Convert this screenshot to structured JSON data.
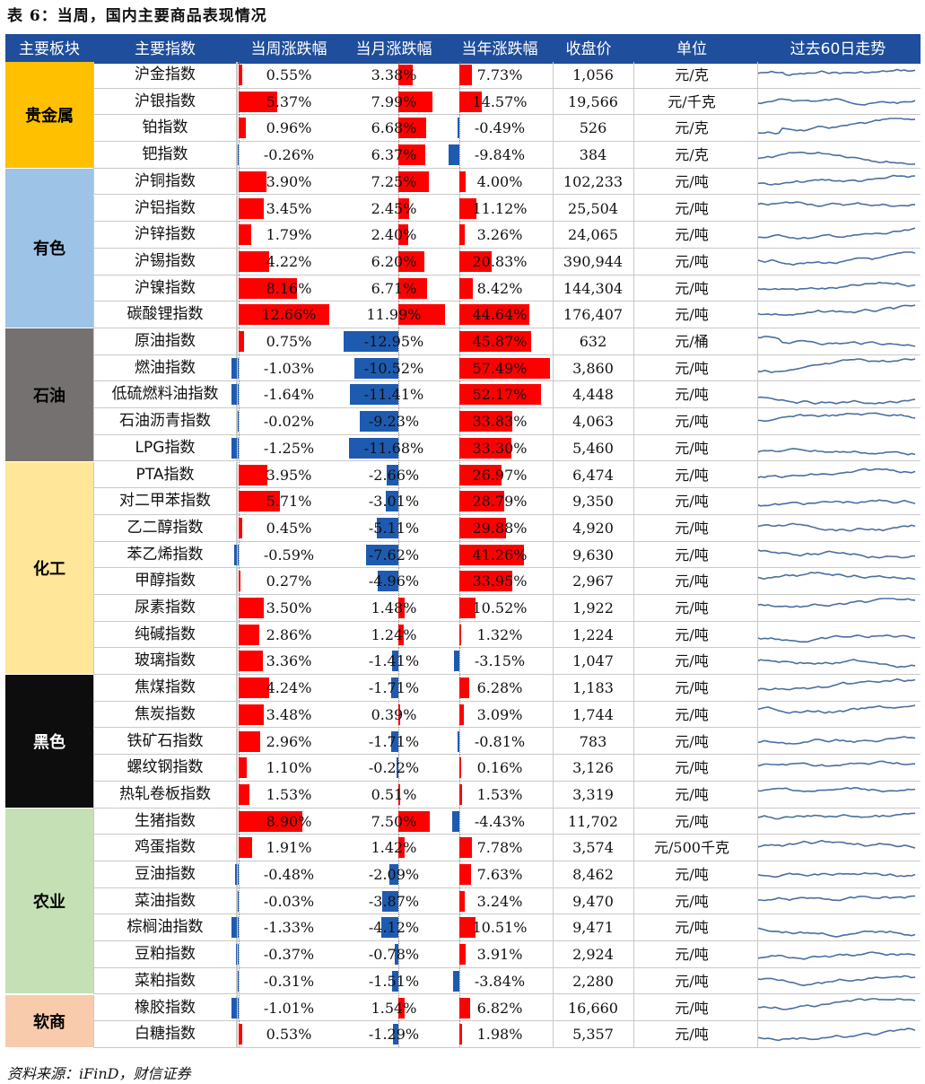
{
  "title": "表 6：当周，国内主要商品表现情况",
  "source": "资料来源：iFinD，财信证券",
  "headers": [
    "主要板块",
    "主要指数",
    "当周涨跌幅",
    "当月涨跌幅",
    "当年涨跌幅",
    "收盘价",
    "单位",
    "过去60日走势"
  ],
  "groups": [
    {
      "name": "贵金属",
      "color": "#ffc000",
      "text_color": "#000000",
      "rows": 4
    },
    {
      "name": "有色",
      "color": "#9dc3e6",
      "text_color": "#000000",
      "rows": 6
    },
    {
      "name": "石油",
      "color": "#767171",
      "text_color": "#000000",
      "rows": 5
    },
    {
      "name": "化工",
      "color": "#ffe699",
      "text_color": "#000000",
      "rows": 8
    },
    {
      "name": "黑色",
      "color": "#0d0d0d",
      "text_color": "#ffffff",
      "rows": 5
    },
    {
      "name": "农业",
      "color": "#c5e0b4",
      "text_color": "#000000",
      "rows": 7
    },
    {
      "name": "软商",
      "color": "#f8cbad",
      "text_color": "#000000",
      "rows": 2
    }
  ],
  "rows": [
    {
      "name": "沪金指数",
      "week": "0.55%",
      "month": "3.38%",
      "year": "7.73%",
      "close": "1,056",
      "unit": "元/克"
    },
    {
      "name": "沪银指数",
      "week": "5.37%",
      "month": "7.99%",
      "year": "14.57%",
      "close": "19,566",
      "unit": "元/千克"
    },
    {
      "name": "铂指数",
      "week": "0.96%",
      "month": "6.68%",
      "year": "-0.49%",
      "close": "526",
      "unit": "元/克"
    },
    {
      "name": "钯指数",
      "week": "-0.26%",
      "month": "6.37%",
      "year": "-9.84%",
      "close": "384",
      "unit": "元/克"
    },
    {
      "name": "沪铜指数",
      "week": "3.90%",
      "month": "7.25%",
      "year": "4.00%",
      "close": "102,233",
      "unit": "元/吨"
    },
    {
      "name": "沪铝指数",
      "week": "3.45%",
      "month": "2.45%",
      "year": "11.12%",
      "close": "25,504",
      "unit": "元/吨"
    },
    {
      "name": "沪锌指数",
      "week": "1.79%",
      "month": "2.40%",
      "year": "3.26%",
      "close": "24,065",
      "unit": "元/吨"
    },
    {
      "name": "沪锡指数",
      "week": "4.22%",
      "month": "6.20%",
      "year": "20.83%",
      "close": "390,944",
      "unit": "元/吨"
    },
    {
      "name": "沪镍指数",
      "week": "8.16%",
      "month": "6.71%",
      "year": "8.42%",
      "close": "144,304",
      "unit": "元/吨"
    },
    {
      "name": "碳酸锂指数",
      "week": "12.66%",
      "month": "11.99%",
      "year": "44.64%",
      "close": "176,407",
      "unit": "元/吨"
    },
    {
      "name": "原油指数",
      "week": "0.75%",
      "month": "-12.95%",
      "year": "45.87%",
      "close": "632",
      "unit": "元/桶"
    },
    {
      "name": "燃油指数",
      "week": "-1.03%",
      "month": "-10.52%",
      "year": "57.49%",
      "close": "3,860",
      "unit": "元/吨"
    },
    {
      "name": "低硫燃料油指数",
      "week": "-1.64%",
      "month": "-11.41%",
      "year": "52.17%",
      "close": "4,448",
      "unit": "元/吨"
    },
    {
      "name": "石油沥青指数",
      "week": "-0.02%",
      "month": "-9.23%",
      "year": "33.83%",
      "close": "4,063",
      "unit": "元/吨"
    },
    {
      "name": "LPG指数",
      "week": "-1.25%",
      "month": "-11.68%",
      "year": "33.30%",
      "close": "5,460",
      "unit": "元/吨"
    },
    {
      "name": "PTA指数",
      "week": "3.95%",
      "month": "-2.66%",
      "year": "26.97%",
      "close": "6,474",
      "unit": "元/吨"
    },
    {
      "name": "对二甲苯指数",
      "week": "5.71%",
      "month": "-3.01%",
      "year": "28.79%",
      "close": "9,350",
      "unit": "元/吨"
    },
    {
      "name": "乙二醇指数",
      "week": "0.45%",
      "month": "-5.11%",
      "year": "29.88%",
      "close": "4,920",
      "unit": "元/吨"
    },
    {
      "name": "苯乙烯指数",
      "week": "-0.59%",
      "month": "-7.62%",
      "year": "41.26%",
      "close": "9,630",
      "unit": "元/吨"
    },
    {
      "name": "甲醇指数",
      "week": "0.27%",
      "month": "-4.96%",
      "year": "33.95%",
      "close": "2,967",
      "unit": "元/吨"
    },
    {
      "name": "尿素指数",
      "week": "3.50%",
      "month": "1.48%",
      "year": "10.52%",
      "close": "1,922",
      "unit": "元/吨"
    },
    {
      "name": "纯碱指数",
      "week": "2.86%",
      "month": "1.24%",
      "year": "1.32%",
      "close": "1,224",
      "unit": "元/吨"
    },
    {
      "name": "玻璃指数",
      "week": "3.36%",
      "month": "-1.41%",
      "year": "-3.15%",
      "close": "1,047",
      "unit": "元/吨"
    },
    {
      "name": "焦煤指数",
      "week": "4.24%",
      "month": "-1.71%",
      "year": "6.28%",
      "close": "1,183",
      "unit": "元/吨"
    },
    {
      "name": "焦炭指数",
      "week": "3.48%",
      "month": "0.39%",
      "year": "3.09%",
      "close": "1,744",
      "unit": "元/吨"
    },
    {
      "name": "铁矿石指数",
      "week": "2.96%",
      "month": "-1.71%",
      "year": "-0.81%",
      "close": "783",
      "unit": "元/吨"
    },
    {
      "name": "螺纹钢指数",
      "week": "1.10%",
      "month": "-0.22%",
      "year": "0.16%",
      "close": "3,126",
      "unit": "元/吨"
    },
    {
      "name": "热轧卷板指数",
      "week": "1.53%",
      "month": "0.51%",
      "year": "1.53%",
      "close": "3,319",
      "unit": "元/吨"
    },
    {
      "name": "生猪指数",
      "week": "8.90%",
      "month": "7.50%",
      "year": "-4.43%",
      "close": "11,702",
      "unit": "元/吨"
    },
    {
      "name": "鸡蛋指数",
      "week": "1.91%",
      "month": "1.42%",
      "year": "7.78%",
      "close": "3,574",
      "unit": "元/500千克"
    },
    {
      "name": "豆油指数",
      "week": "-0.48%",
      "month": "-2.09%",
      "year": "7.63%",
      "close": "8,462",
      "unit": "元/吨"
    },
    {
      "name": "菜油指数",
      "week": "-0.03%",
      "month": "-3.87%",
      "year": "3.24%",
      "close": "9,470",
      "unit": "元/吨"
    },
    {
      "name": "棕榈油指数",
      "week": "-1.33%",
      "month": "-4.12%",
      "year": "10.51%",
      "close": "9,471",
      "unit": "元/吨"
    },
    {
      "name": "豆粕指数",
      "week": "-0.37%",
      "month": "-0.78%",
      "year": "3.91%",
      "close": "2,924",
      "unit": "元/吨"
    },
    {
      "name": "菜粕指数",
      "week": "-0.31%",
      "month": "-1.51%",
      "year": "-3.84%",
      "close": "2,280",
      "unit": "元/吨"
    },
    {
      "name": "橡胶指数",
      "week": "-1.01%",
      "month": "1.54%",
      "year": "6.82%",
      "close": "16,660",
      "unit": "元/吨"
    },
    {
      "name": "白糖指数",
      "week": "0.53%",
      "month": "-1.29%",
      "year": "1.98%",
      "close": "5,357",
      "unit": "元/吨"
    }
  ],
  "colors": {
    "header_bg": "#1f4e9c",
    "positive": "#ff0000",
    "negative": "#1e5bb0",
    "spark": "#4a6fa0"
  }
}
